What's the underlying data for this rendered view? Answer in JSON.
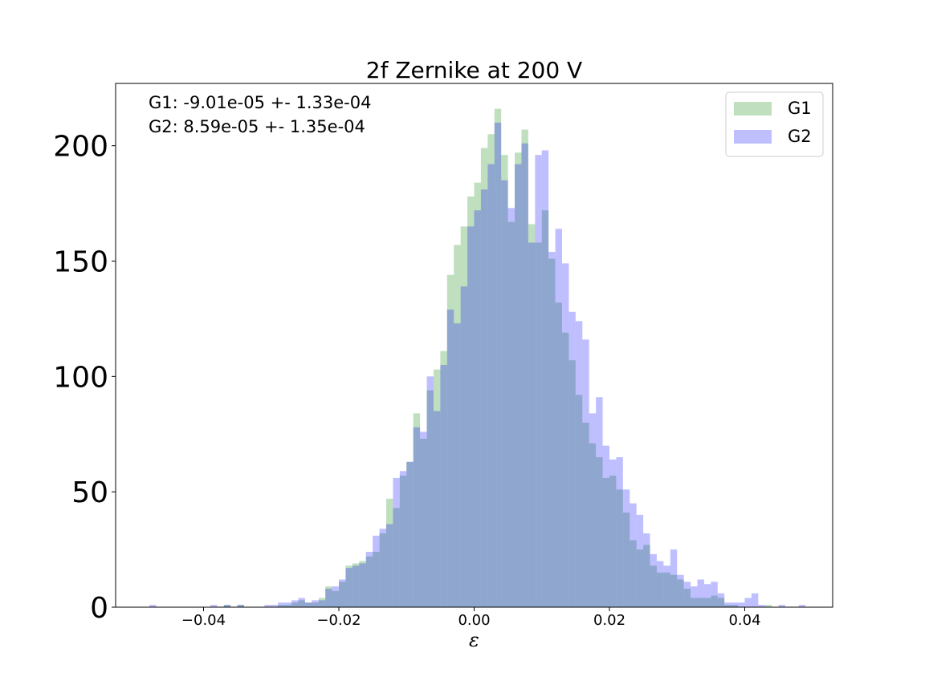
{
  "chart_data": {
    "type": "histogram",
    "title": "2f Zernike at 200 V",
    "xlabel": "ε",
    "ylabel": "",
    "xlim": [
      -0.053,
      0.053
    ],
    "ylim": [
      0,
      227
    ],
    "x_ticks": [
      -0.04,
      -0.02,
      0.0,
      0.02,
      0.04
    ],
    "x_tick_labels": [
      "−0.04",
      "−0.02",
      "0.00",
      "0.02",
      "0.04"
    ],
    "y_ticks": [
      0,
      50,
      100,
      150,
      200
    ],
    "y_tick_labels": [
      "0",
      "50",
      "100",
      "150",
      "200"
    ],
    "grid": false,
    "legend_position": "upper right",
    "bin_edges_start": -0.048,
    "bin_width": 0.001,
    "annotations": [
      "G1: -9.01e-05 +- 1.33e-04",
      "G2: 8.59e-05 +- 1.35e-04"
    ],
    "series": [
      {
        "name": "G1",
        "color": "#008000",
        "alpha": 0.25,
        "values": [
          0,
          0,
          0,
          0,
          0,
          0,
          0,
          0,
          0,
          0,
          0,
          1,
          0,
          1,
          0,
          0,
          0,
          0,
          0,
          1,
          1,
          2,
          3,
          2,
          2,
          4,
          9,
          7,
          11,
          18,
          19,
          20,
          22,
          24,
          32,
          47,
          43,
          57,
          63,
          84,
          73,
          94,
          103,
          111,
          144,
          157,
          165,
          178,
          184,
          199,
          205,
          216,
          196,
          167,
          197,
          207,
          166,
          158,
          172,
          151,
          132,
          119,
          107,
          92,
          80,
          71,
          65,
          56,
          57,
          51,
          41,
          29,
          25,
          27,
          18,
          15,
          15,
          14,
          12,
          8,
          4,
          4,
          4,
          5,
          4,
          1,
          1,
          0,
          0,
          0,
          0,
          1,
          0,
          0,
          0,
          0,
          0,
          0,
          0,
          0
        ]
      },
      {
        "name": "G2",
        "color": "#0000ff",
        "alpha": 0.25,
        "values": [
          1,
          0,
          0,
          0,
          0,
          0,
          0,
          0,
          0,
          1,
          0,
          1,
          0,
          1,
          0,
          0,
          0,
          1,
          1,
          2,
          2,
          3,
          4,
          2,
          3,
          3,
          8,
          9,
          12,
          17,
          18,
          19,
          24,
          31,
          34,
          36,
          56,
          59,
          63,
          78,
          76,
          100,
          85,
          105,
          129,
          123,
          139,
          165,
          172,
          181,
          192,
          210,
          185,
          173,
          192,
          201,
          158,
          196,
          198,
          154,
          164,
          149,
          128,
          124,
          116,
          84,
          91,
          70,
          64,
          65,
          51,
          45,
          40,
          32,
          23,
          20,
          18,
          25,
          14,
          11,
          9,
          12,
          10,
          11,
          6,
          2,
          2,
          2,
          4,
          6,
          1,
          0,
          0,
          1,
          0,
          0,
          1,
          0,
          0,
          0
        ]
      }
    ]
  }
}
